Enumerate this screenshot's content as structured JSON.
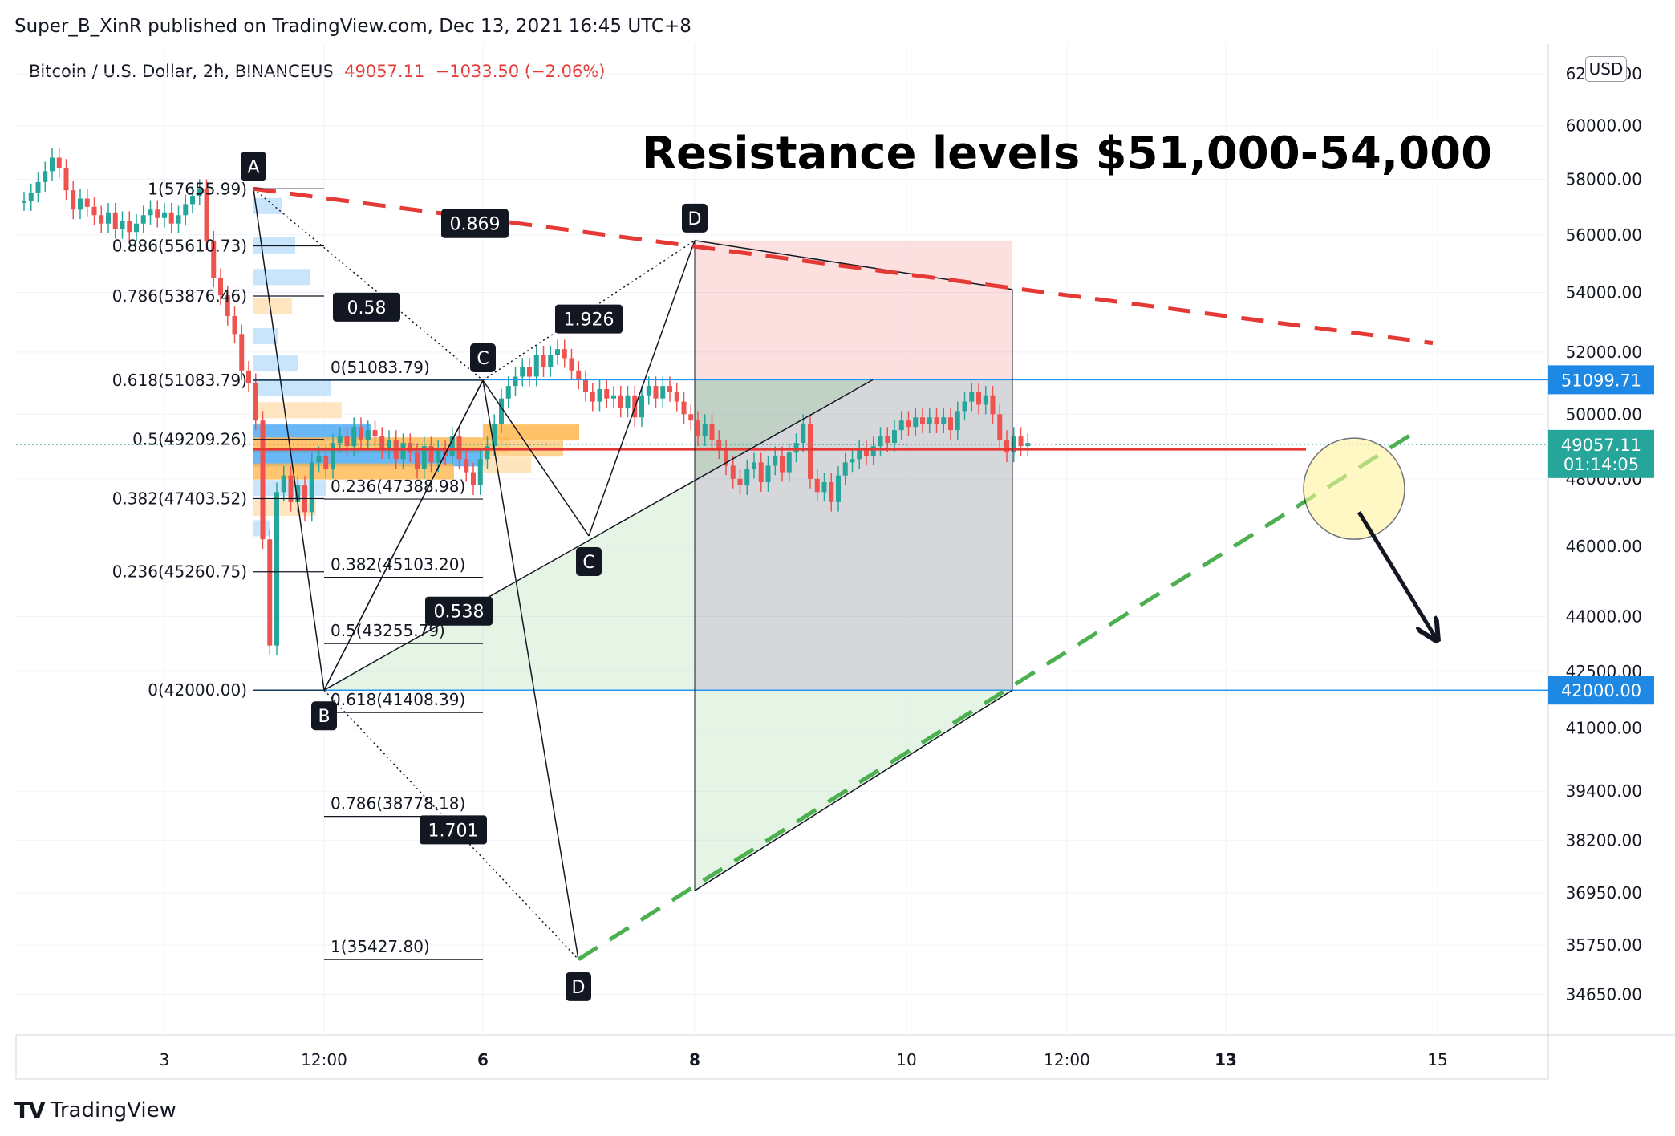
{
  "header": {
    "publish": "Super_B_XinR published on TradingView.com, Dec 13, 2021 16:45 UTC+8",
    "symbol": "Bitcoin / U.S. Dollar, 2h, BINANCEUS",
    "last_price": "49057.11",
    "change": "−1033.50 (−2.06%)",
    "currency": "USD"
  },
  "brand": {
    "name": "TradingView",
    "logo": "TV"
  },
  "colors": {
    "up": "#26a69a",
    "down": "#ef5350",
    "resistance": "#e53935",
    "support": "#4caf50",
    "hline": "#2196f3",
    "badge": "#1e88e5",
    "last_badge": "#26a69a",
    "marker": "#131722"
  },
  "chart_data": {
    "type": "line",
    "title": "Resistance levels $51,000-54,000",
    "y_scale": "log",
    "ylim": [
      33500,
      63500
    ],
    "y_ticks": [
      "62000.00",
      "60000.00",
      "58000.00",
      "56000.00",
      "54000.00",
      "52000.00",
      "50000.00",
      "48000.00",
      "46000.00",
      "44000.00",
      "42500.00",
      "41000.00",
      "39400.00",
      "38200.00",
      "36950.00",
      "35750.00",
      "34650.00"
    ],
    "x_ticks": [
      {
        "label": "3",
        "bold": false
      },
      {
        "label": "12:00",
        "bold": false
      },
      {
        "label": "6",
        "bold": true
      },
      {
        "label": "8",
        "bold": true
      },
      {
        "label": "10",
        "bold": false
      },
      {
        "label": "12:00",
        "bold": false
      },
      {
        "label": "13",
        "bold": true
      },
      {
        "label": "15",
        "bold": false
      }
    ],
    "price_badges": [
      {
        "value": "51099.71",
        "kind": "level"
      },
      {
        "value": "49057.11",
        "countdown": "01:14:05",
        "kind": "last"
      },
      {
        "value": "42000.00",
        "kind": "level"
      }
    ],
    "horizontal_levels": [
      51099.71,
      42000.0
    ],
    "pivot_level": 49057.11,
    "red_line": 49057.11,
    "series": [
      {
        "name": "BTCUSD 2h close",
        "values": [
          57200,
          57500,
          57900,
          58300,
          58800,
          58400,
          57600,
          56900,
          57300,
          57000,
          56700,
          56400,
          56800,
          56200,
          56500,
          56100,
          56400,
          56700,
          56900,
          56600,
          56800,
          56400,
          56700,
          57100,
          57400,
          57655,
          55800,
          54500,
          53900,
          53200,
          52600,
          51400,
          51000,
          49800,
          46200,
          43200,
          47600,
          48100,
          47300,
          47800,
          47000,
          48500,
          48700,
          48300,
          49100,
          49300,
          49000,
          49600,
          49200,
          49500,
          49300,
          48900,
          49200,
          48600,
          49100,
          48800,
          48300,
          49000,
          48500,
          48900,
          48700,
          49300,
          48600,
          48200,
          47800,
          48600,
          49000,
          49700,
          50500,
          50900,
          51200,
          51500,
          51200,
          51900,
          51500,
          51900,
          52100,
          51800,
          51400,
          51100,
          50700,
          50400,
          50800,
          50500,
          50600,
          50200,
          50600,
          49900,
          50600,
          50900,
          50500,
          50900,
          50700,
          50400,
          50000,
          49800,
          49300,
          49700,
          49200,
          48900,
          48400,
          48000,
          47800,
          48300,
          48500,
          47900,
          48400,
          48700,
          48200,
          48800,
          49100,
          49700,
          48000,
          47600,
          47900,
          47300,
          48100,
          48500,
          48600,
          48900,
          48700,
          49000,
          49300,
          49100,
          49500,
          49800,
          49600,
          49900,
          49700,
          49900,
          49700,
          49900,
          49500,
          50100,
          50400,
          50700,
          50300,
          50600,
          50000,
          49200,
          48800,
          49300,
          49000,
          49100
        ]
      }
    ],
    "harmonic_labels": [
      {
        "label": "A",
        "price": 57655.99,
        "pos": "above"
      },
      {
        "label": "B",
        "price": 42000.0,
        "pos": "below"
      },
      {
        "label": "C",
        "price": 51083.79,
        "pos": "above"
      },
      {
        "label": "D",
        "price": 35427.8,
        "pos": "below"
      },
      {
        "label": "C",
        "price": 46300,
        "pos": "below"
      },
      {
        "label": "D",
        "price": 55800,
        "pos": "above"
      }
    ],
    "ratios": [
      "0.869",
      "0.58",
      "1.926",
      "0.538",
      "1.701"
    ],
    "fib_left": [
      {
        "text": "1(57655.99)",
        "price": 57655.99
      },
      {
        "text": "0.886(55610.73)",
        "price": 55610.73
      },
      {
        "text": "0.786(53876.46)",
        "price": 53876.46
      },
      {
        "text": "0.618(51083.79)",
        "price": 51083.79
      },
      {
        "text": "0.5(49209.26)",
        "price": 49209.26
      },
      {
        "text": "0.382(47403.52)",
        "price": 47403.52
      },
      {
        "text": "0.236(45260.75)",
        "price": 45260.75
      },
      {
        "text": "0(42000.00)",
        "price": 42000.0
      }
    ],
    "fib_right": [
      {
        "text": "0(51083.79)",
        "price": 51083.79
      },
      {
        "text": "0.236(47388.98)",
        "price": 47388.98
      },
      {
        "text": "0.382(45103.20)",
        "price": 45103.2
      },
      {
        "text": "0.5(43255.79)",
        "price": 43255.79
      },
      {
        "text": "0.618(41408.39)",
        "price": 41408.39
      },
      {
        "text": "0.786(38778.18)",
        "price": 38778.18
      },
      {
        "text": "1(35427.80)",
        "price": 35427.8
      }
    ]
  }
}
